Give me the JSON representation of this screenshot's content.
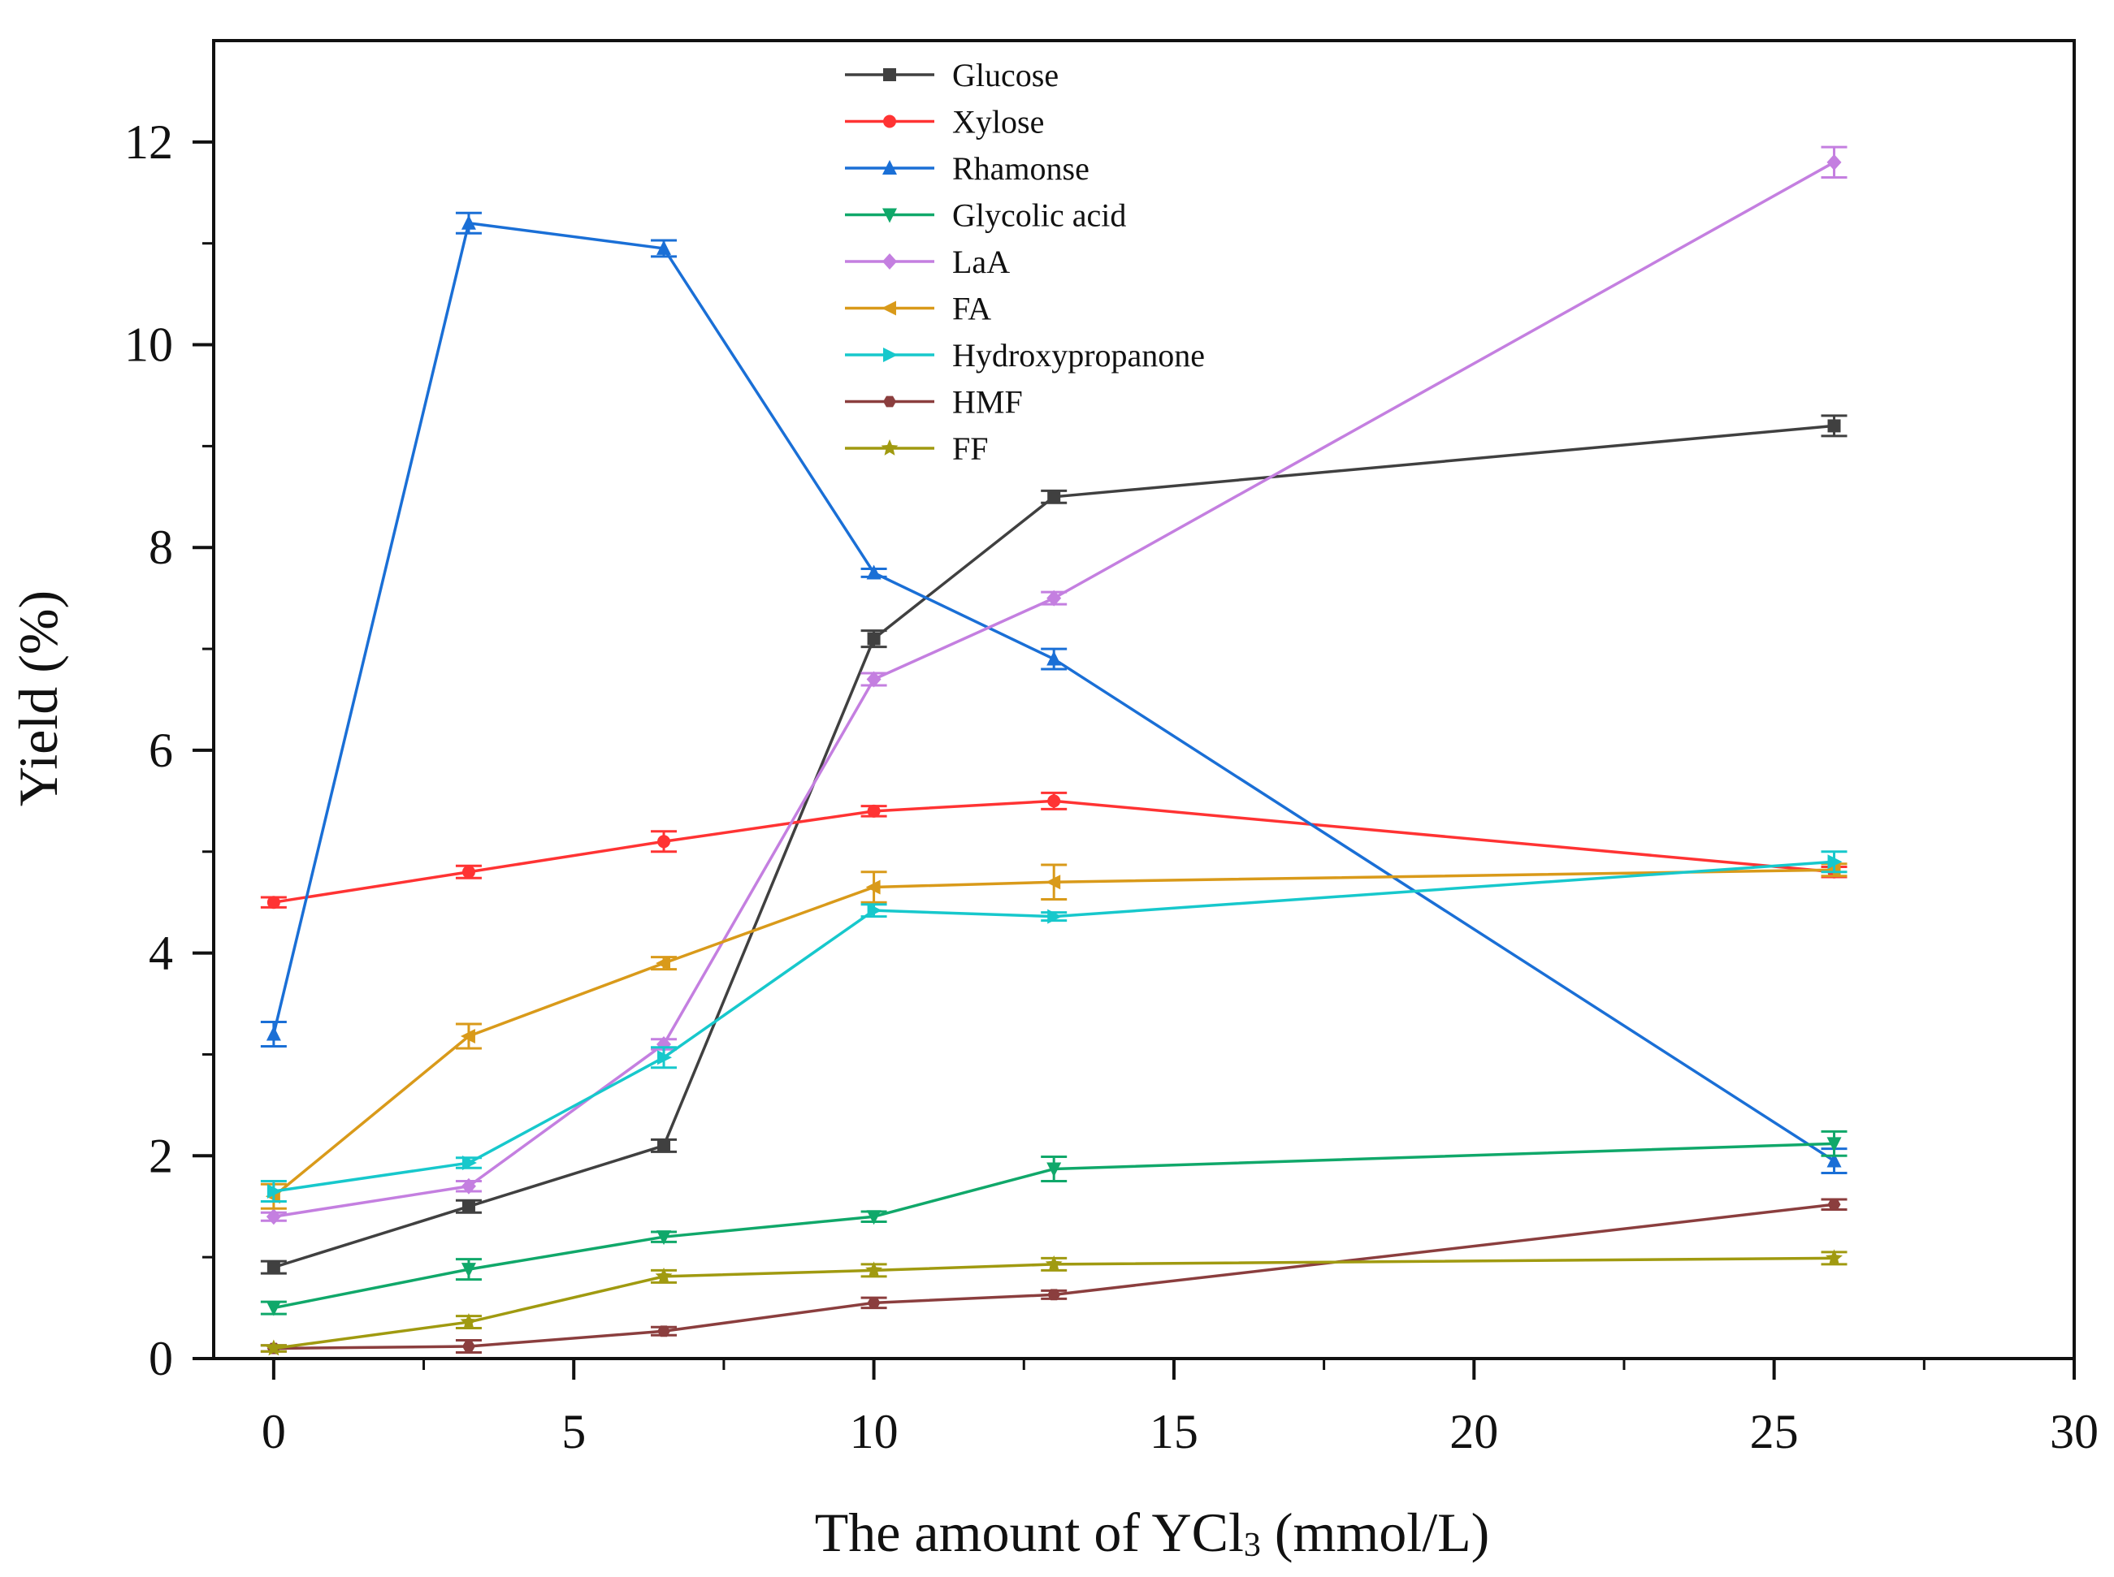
{
  "chart_data": {
    "type": "line",
    "title": "",
    "xlabel": "The amount of YCl₃ (mmol/L)",
    "xlabel_parts": {
      "prefix": "The amount of YCl",
      "subscript": "3",
      "suffix": " (mmol/L)"
    },
    "ylabel": "Yield (%)",
    "xlim": [
      -1,
      30
    ],
    "ylim": [
      0,
      13
    ],
    "xticks": [
      "0",
      "5",
      "10",
      "15",
      "20",
      "25",
      "30"
    ],
    "yticks": [
      "0",
      "2",
      "4",
      "6",
      "8",
      "10",
      "12"
    ],
    "grid": false,
    "legend_position": "top-center",
    "x": [
      0,
      3.25,
      6.5,
      10,
      13,
      26
    ],
    "series": [
      {
        "name": "Glucose",
        "color": "#404040",
        "marker": "square",
        "values": [
          0.9,
          1.5,
          2.1,
          7.1,
          8.5,
          9.2
        ],
        "errors": [
          0.06,
          0.06,
          0.06,
          0.08,
          0.06,
          0.1
        ]
      },
      {
        "name": "Xylose",
        "color": "#ff3333",
        "marker": "circle",
        "values": [
          4.5,
          4.8,
          5.1,
          5.4,
          5.5,
          4.8
        ],
        "errors": [
          0.05,
          0.06,
          0.1,
          0.05,
          0.08,
          0.05
        ]
      },
      {
        "name": "Rhamonse",
        "color": "#1a6fd6",
        "marker": "triangle-up",
        "values": [
          3.2,
          11.2,
          10.95,
          7.75,
          6.9,
          1.95
        ],
        "errors": [
          0.12,
          0.1,
          0.08,
          0.04,
          0.1,
          0.12
        ]
      },
      {
        "name": "Glycolic acid",
        "color": "#10a86a",
        "marker": "triangle-down",
        "values": [
          0.5,
          0.88,
          1.2,
          1.4,
          1.87,
          2.12
        ],
        "errors": [
          0.06,
          0.1,
          0.05,
          0.05,
          0.12,
          0.12
        ]
      },
      {
        "name": "LaA",
        "color": "#c47fe0",
        "marker": "diamond",
        "values": [
          1.4,
          1.7,
          3.1,
          6.7,
          7.5,
          11.8
        ],
        "errors": [
          0.04,
          0.05,
          0.05,
          0.06,
          0.06,
          0.15
        ]
      },
      {
        "name": "FA",
        "color": "#d99a1a",
        "marker": "triangle-left",
        "values": [
          1.6,
          3.18,
          3.9,
          4.65,
          4.7,
          4.82
        ],
        "errors": [
          0.12,
          0.12,
          0.06,
          0.15,
          0.17,
          0.06
        ]
      },
      {
        "name": "Hydroxypropanone",
        "color": "#17c8cc",
        "marker": "triangle-right",
        "values": [
          1.65,
          1.93,
          2.97,
          4.42,
          4.36,
          4.9
        ],
        "errors": [
          0.1,
          0.05,
          0.1,
          0.06,
          0.04,
          0.1
        ]
      },
      {
        "name": "HMF",
        "color": "#8b3e3e",
        "marker": "hexagon",
        "values": [
          0.1,
          0.12,
          0.27,
          0.55,
          0.63,
          1.52
        ],
        "errors": [
          0.03,
          0.06,
          0.04,
          0.05,
          0.04,
          0.05
        ]
      },
      {
        "name": "FF",
        "color": "#a09a10",
        "marker": "star",
        "values": [
          0.1,
          0.36,
          0.81,
          0.87,
          0.93,
          0.99
        ],
        "errors": [
          0.03,
          0.06,
          0.06,
          0.06,
          0.06,
          0.06
        ]
      }
    ]
  }
}
